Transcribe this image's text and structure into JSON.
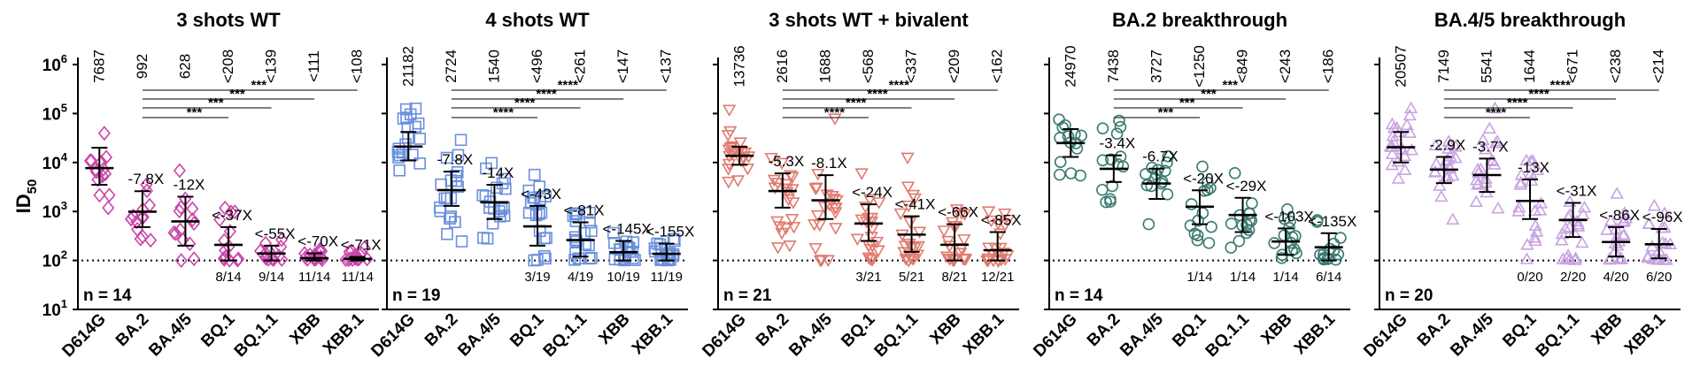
{
  "chart_data": {
    "type": "scatter",
    "y_axis": {
      "label": "ID",
      "label_sub": "50",
      "scale": "log10",
      "ylim": [
        10,
        1000000
      ],
      "ticks": [
        {
          "base": "10",
          "exp": "6",
          "value": 1000000
        },
        {
          "base": "10",
          "exp": "5",
          "value": 100000
        },
        {
          "base": "10",
          "exp": "4",
          "value": 10000
        },
        {
          "base": "10",
          "exp": "3",
          "value": 1000
        },
        {
          "base": "10",
          "exp": "2",
          "value": 100
        },
        {
          "base": "10",
          "exp": "1",
          "value": 10
        }
      ],
      "detection_limit": 100
    },
    "categories": [
      "D614G",
      "BA.2",
      "BA.4/5",
      "BQ.1",
      "BQ.1.1",
      "XBB",
      "XBB.1"
    ],
    "panels": [
      {
        "title": "3 shots WT",
        "n_label": "n = 14",
        "color": "#cc44aa",
        "marker": "diamond",
        "gmt_labels": [
          "7687",
          "992",
          "628",
          "<208",
          "<139",
          "<111",
          "<108"
        ],
        "gmt": [
          7687,
          992,
          628,
          208,
          139,
          111,
          108
        ],
        "ci": [
          [
            3500,
            20000
          ],
          [
            480,
            2600
          ],
          [
            200,
            2000
          ],
          [
            100,
            480
          ],
          [
            100,
            200
          ],
          [
            100,
            140
          ],
          [
            100,
            118
          ]
        ],
        "fold_labels": [
          "",
          "-7.8X",
          "-12X",
          "<-37X",
          "<-55X",
          "<-70X",
          "<-71X"
        ],
        "below_limit": [
          "",
          "",
          "",
          "8/14",
          "9/14",
          "11/14",
          "11/14"
        ],
        "sig": [
          "***",
          "***",
          "***",
          "***"
        ]
      },
      {
        "title": "4 shots WT",
        "n_label": "n = 19",
        "color": "#6a8fdc",
        "marker": "square",
        "gmt_labels": [
          "21182",
          "2724",
          "1540",
          "<496",
          "<261",
          "<147",
          "<137"
        ],
        "gmt": [
          21182,
          2724,
          1540,
          496,
          261,
          147,
          137
        ],
        "ci": [
          [
            11000,
            42000
          ],
          [
            1300,
            6500
          ],
          [
            700,
            3500
          ],
          [
            200,
            1300
          ],
          [
            120,
            600
          ],
          [
            100,
            250
          ],
          [
            100,
            220
          ]
        ],
        "fold_labels": [
          "",
          "-7.8X",
          "-14X",
          "<-43X",
          "<-81X",
          "<-145X",
          "<-155X"
        ],
        "below_limit": [
          "",
          "",
          "",
          "3/19",
          "4/19",
          "10/19",
          "11/19"
        ],
        "sig": [
          "****",
          "****",
          "****",
          "****"
        ]
      },
      {
        "title": "3 shots WT + bivalent",
        "n_label": "n = 21",
        "color": "#e07a6e",
        "marker": "triangle-down",
        "gmt_labels": [
          "13736",
          "2616",
          "1688",
          "<568",
          "<337",
          "<209",
          "<162"
        ],
        "gmt": [
          13736,
          2616,
          1688,
          568,
          337,
          209,
          162
        ],
        "ci": [
          [
            9000,
            21000
          ],
          [
            1200,
            6000
          ],
          [
            700,
            5500
          ],
          [
            250,
            1400
          ],
          [
            150,
            800
          ],
          [
            100,
            550
          ],
          [
            100,
            380
          ]
        ],
        "fold_labels": [
          "",
          "-5.3X",
          "-8.1X",
          "<-24X",
          "<-41X",
          "<-66X",
          "<-85X"
        ],
        "below_limit": [
          "",
          "",
          "",
          "3/21",
          "5/21",
          "8/21",
          "12/21"
        ],
        "sig": [
          "****",
          "****",
          "****",
          "****"
        ]
      },
      {
        "title": "BA.2 breakthrough",
        "n_label": "n = 14",
        "color": "#3a7a70",
        "marker": "circle",
        "gmt_labels": [
          "24970",
          "7438",
          "3727",
          "<1250",
          "<849",
          "<243",
          "<186"
        ],
        "gmt": [
          24970,
          7438,
          3727,
          1250,
          849,
          243,
          186
        ],
        "ci": [
          [
            13000,
            48000
          ],
          [
            4000,
            14000
          ],
          [
            1800,
            7500
          ],
          [
            550,
            2700
          ],
          [
            380,
            1900
          ],
          [
            130,
            450
          ],
          [
            100,
            360
          ]
        ],
        "fold_labels": [
          "",
          "-3.4X",
          "-6.7X",
          "<-20X",
          "<-29X",
          "<-103X",
          "<-135X"
        ],
        "below_limit": [
          "",
          "",
          "",
          "1/14",
          "1/14",
          "1/14",
          "6/14"
        ],
        "sig": [
          "***",
          "***",
          "***",
          "***"
        ]
      },
      {
        "title": "BA.4/5 breakthrough",
        "n_label": "n = 20",
        "color": "#c9a3e2",
        "marker": "triangle-up",
        "gmt_labels": [
          "20507",
          "7149",
          "5541",
          "1644",
          "<671",
          "<238",
          "<214"
        ],
        "gmt": [
          20507,
          7149,
          5541,
          1644,
          671,
          238,
          214
        ],
        "ci": [
          [
            10000,
            42000
          ],
          [
            3800,
            13000
          ],
          [
            2500,
            12000
          ],
          [
            700,
            4500
          ],
          [
            300,
            1500
          ],
          [
            120,
            480
          ],
          [
            110,
            440
          ]
        ],
        "fold_labels": [
          "",
          "-2.9X",
          "-3.7X",
          "-13X",
          "<-31X",
          "<-86X",
          "<-96X"
        ],
        "below_limit": [
          "",
          "",
          "",
          "0/20",
          "2/20",
          "4/20",
          "6/20"
        ],
        "sig": [
          "****",
          "****",
          "****",
          "****"
        ]
      }
    ]
  }
}
